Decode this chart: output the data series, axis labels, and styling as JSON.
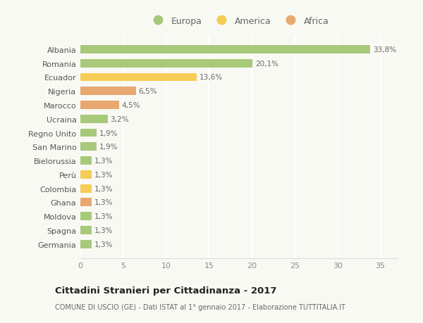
{
  "categories": [
    "Albania",
    "Romania",
    "Ecuador",
    "Nigeria",
    "Marocco",
    "Ucraina",
    "Regno Unito",
    "San Marino",
    "Bielorussia",
    "Perù",
    "Colombia",
    "Ghana",
    "Moldova",
    "Spagna",
    "Germania"
  ],
  "values": [
    33.8,
    20.1,
    13.6,
    6.5,
    4.5,
    3.2,
    1.9,
    1.9,
    1.3,
    1.3,
    1.3,
    1.3,
    1.3,
    1.3,
    1.3
  ],
  "labels": [
    "33,8%",
    "20,1%",
    "13,6%",
    "6,5%",
    "4,5%",
    "3,2%",
    "1,9%",
    "1,9%",
    "1,3%",
    "1,3%",
    "1,3%",
    "1,3%",
    "1,3%",
    "1,3%",
    "1,3%"
  ],
  "continents": [
    "Europa",
    "Europa",
    "America",
    "Africa",
    "Africa",
    "Europa",
    "Europa",
    "Europa",
    "Europa",
    "America",
    "America",
    "Africa",
    "Europa",
    "Europa",
    "Europa"
  ],
  "colors": {
    "Europa": "#a8c87a",
    "America": "#f5cc55",
    "Africa": "#e8a870"
  },
  "xlim": [
    0,
    37
  ],
  "xticks": [
    0,
    5,
    10,
    15,
    20,
    25,
    30,
    35
  ],
  "title": "Cittadini Stranieri per Cittadinanza - 2017",
  "subtitle": "COMUNE DI USCIO (GE) - Dati ISTAT al 1° gennaio 2017 - Elaborazione TUTTITALIA.IT",
  "background_color": "#f9f9f4",
  "grid_color": "#ffffff",
  "bar_height": 0.6,
  "legend_entries": [
    "Europa",
    "America",
    "Africa"
  ],
  "legend_colors": [
    "#a8c87a",
    "#f5cc55",
    "#e8a870"
  ]
}
